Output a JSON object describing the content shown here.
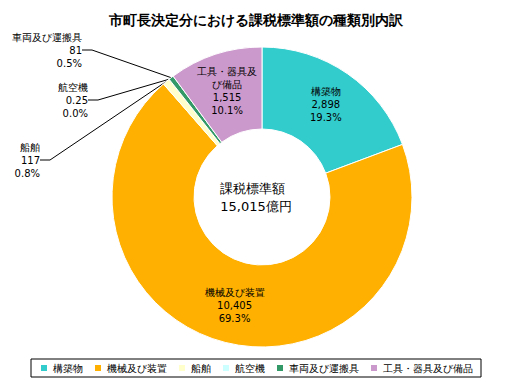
{
  "chart_data": {
    "type": "pie",
    "title": "市町長決定分における課税標準額の種類別内訳",
    "center_text": [
      "課税標準額",
      "15,015億円"
    ],
    "categories": [
      "構築物",
      "機械及び装置",
      "船舶",
      "航空機",
      "車両及び運搬具",
      "工具・器具及び備品"
    ],
    "label_texts": [
      "構築物",
      "機械及び装置",
      "船舶",
      "航空機",
      "車両及び運搬具",
      "工具・器具及\nび備品"
    ],
    "values": [
      2898,
      10405,
      117,
      0.25,
      81,
      1515
    ],
    "value_labels": [
      "2,898",
      "10,405",
      "117",
      "0.25",
      "81",
      "1,515"
    ],
    "percents": [
      19.3,
      69.3,
      0.8,
      0.0,
      0.5,
      10.1
    ],
    "percent_labels": [
      "19.3%",
      "69.3%",
      "0.8%",
      "0.0%",
      "0.5%",
      "10.1%"
    ],
    "colors": [
      "#33cccc",
      "#ffb000",
      "#ffffcc",
      "#ccffff",
      "#339966",
      "#cc99cc"
    ],
    "data_labels": true,
    "legend": "bottom"
  }
}
